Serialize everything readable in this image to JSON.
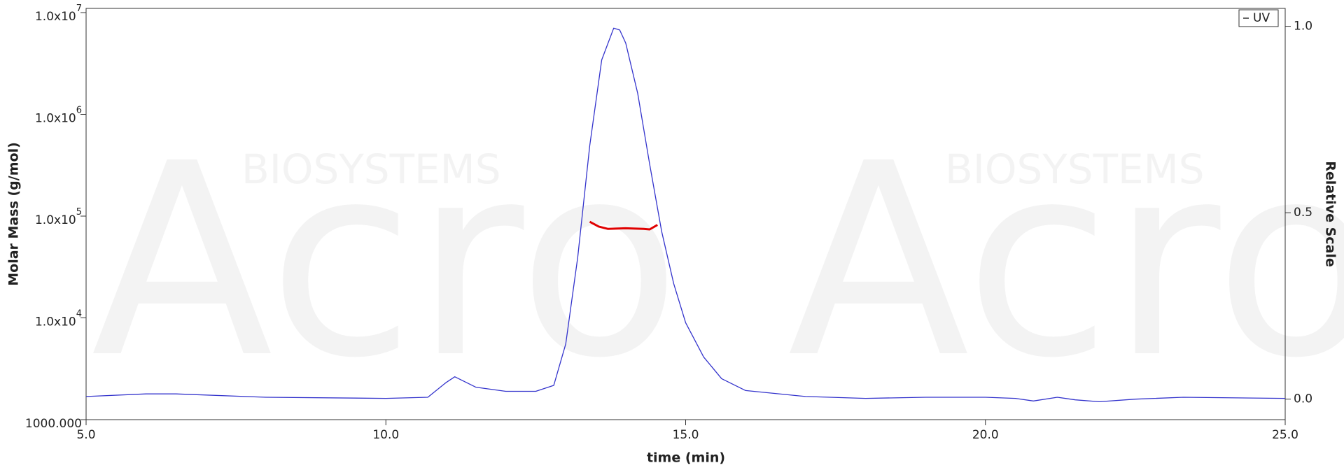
{
  "chart_data": {
    "type": "line",
    "x_label": "time (min)",
    "y_label": "Molar Mass (g/mol)",
    "y2_label": "Relative Scale",
    "watermark": [
      "Acro",
      "BIOSYSTEMS"
    ],
    "xlim": [
      5,
      25
    ],
    "xticks": [
      {
        "value": 5,
        "label": "5.0"
      },
      {
        "value": 10,
        "label": "10.0"
      },
      {
        "value": 15,
        "label": "15.0"
      },
      {
        "value": 20,
        "label": "20.0"
      },
      {
        "value": 25,
        "label": "25.0"
      }
    ],
    "yscale": "log",
    "ylim": [
      1000,
      11000000
    ],
    "yticks": [
      {
        "value": 1000,
        "label": "1000.000"
      },
      {
        "value": 10000,
        "label": "1.0x10",
        "exponent": "4"
      },
      {
        "value": 100000,
        "label": "1.0x10",
        "exponent": "5"
      },
      {
        "value": 1000000,
        "label": "1.0x10",
        "exponent": "6"
      },
      {
        "value": 10000000,
        "label": "1.0x10",
        "exponent": "7"
      }
    ],
    "y2lim": [
      -0.055,
      1.048
    ],
    "y2ticks": [
      {
        "value": 0,
        "label": "0.0"
      },
      {
        "value": 0.5,
        "label": "0.5"
      },
      {
        "value": 1,
        "label": "1.0"
      }
    ],
    "legend": "top-right",
    "series": [
      {
        "name": "UV",
        "color": "#3333cc",
        "axis": "y2",
        "x": [
          5,
          6,
          6.5,
          8,
          10,
          10.7,
          11.0,
          11.15,
          11.5,
          12,
          12.5,
          12.8,
          13.0,
          13.2,
          13.4,
          13.6,
          13.8,
          13.9,
          14.0,
          14.2,
          14.4,
          14.6,
          14.8,
          15.0,
          15.3,
          15.6,
          16.0,
          17,
          18,
          19,
          20,
          20.5,
          20.8,
          21.2,
          21.5,
          21.9,
          22.5,
          23.3,
          25
        ],
        "values": [
          0.007,
          0.014,
          0.014,
          0.005,
          0.002,
          0.005,
          0.044,
          0.06,
          0.032,
          0.021,
          0.021,
          0.037,
          0.148,
          0.38,
          0.68,
          0.91,
          0.995,
          0.99,
          0.955,
          0.82,
          0.63,
          0.45,
          0.31,
          0.205,
          0.113,
          0.055,
          0.023,
          0.007,
          0.002,
          0.005,
          0.005,
          0.002,
          -0.005,
          0.005,
          -0.002,
          -0.007,
          0,
          0.005,
          0.002
        ]
      },
      {
        "color": "#e00000",
        "axis": "y",
        "x": [
          13.4,
          13.55,
          13.7,
          14.0,
          14.3,
          14.4,
          14.53
        ],
        "values": [
          88000,
          79000,
          75000,
          76000,
          75000,
          74000,
          82000
        ]
      }
    ]
  }
}
